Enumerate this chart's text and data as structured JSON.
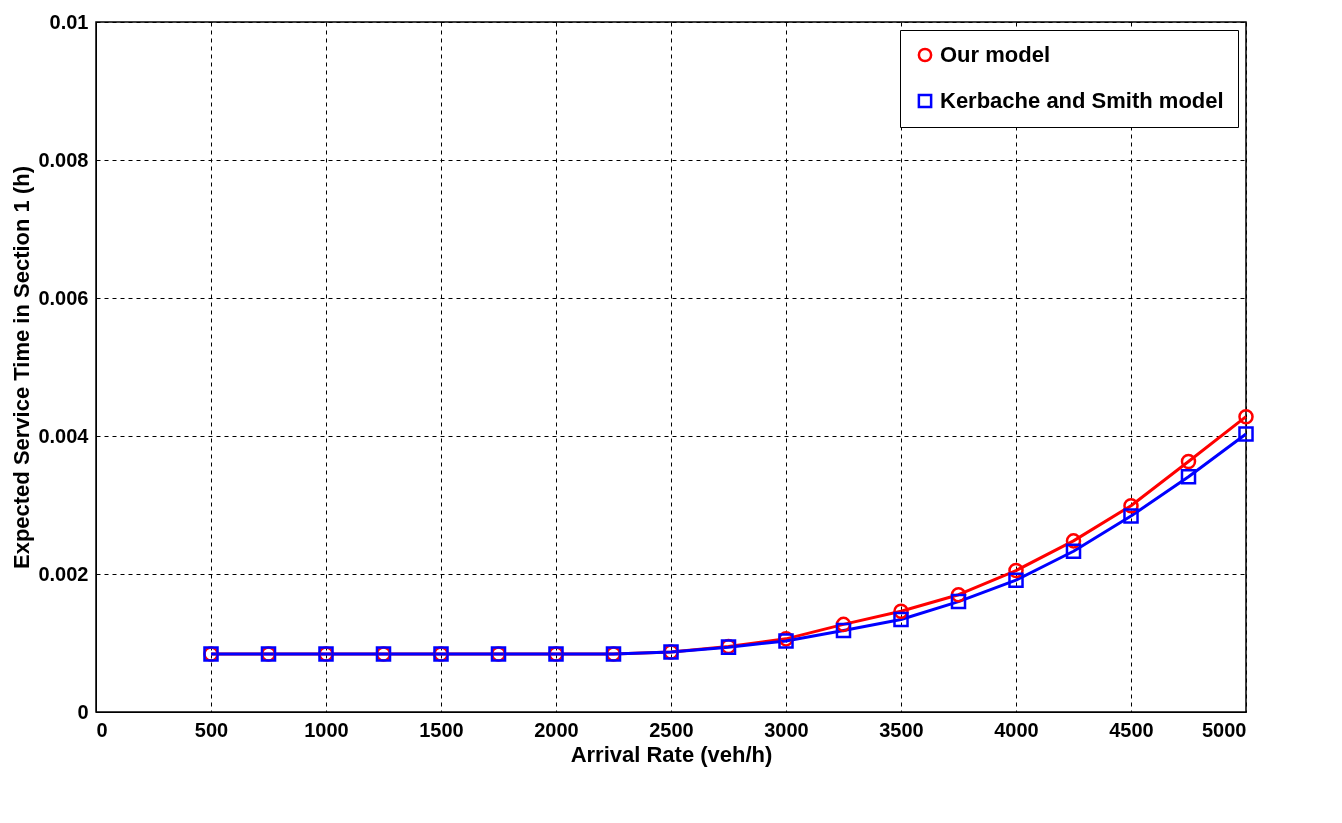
{
  "chart_data": {
    "type": "line",
    "xlabel": "Arrival Rate (veh/h)",
    "ylabel": "Expected Service Time in Section 1 (h)",
    "x": [
      500,
      750,
      1000,
      1250,
      1500,
      1750,
      2000,
      2250,
      2500,
      2750,
      3000,
      3250,
      3500,
      3750,
      4000,
      4250,
      4500,
      4750,
      5000
    ],
    "series": [
      {
        "name": "Our model",
        "color": "#ff0000",
        "marker": "circle",
        "values": [
          0.00084,
          0.00084,
          0.00084,
          0.00084,
          0.00084,
          0.00084,
          0.00084,
          0.00084,
          0.00087,
          0.00095,
          0.00106,
          0.00127,
          0.00146,
          0.0017,
          0.00205,
          0.00248,
          0.00299,
          0.00363,
          0.00428
        ]
      },
      {
        "name": "Kerbache and Smith model",
        "color": "#0000ff",
        "marker": "square",
        "values": [
          0.00084,
          0.00084,
          0.00084,
          0.00084,
          0.00084,
          0.00084,
          0.00084,
          0.00084,
          0.00087,
          0.00094,
          0.00103,
          0.00118,
          0.00134,
          0.0016,
          0.00191,
          0.00233,
          0.00284,
          0.00341,
          0.00403
        ]
      }
    ],
    "xlim": [
      0,
      5000
    ],
    "xticks": [
      0,
      500,
      1000,
      1500,
      2000,
      2500,
      3000,
      3500,
      4000,
      4500,
      5000
    ],
    "ylim": [
      0,
      0.01
    ],
    "yticks": [
      0,
      0.002,
      0.004,
      0.006,
      0.008,
      0.01
    ],
    "grid": true,
    "legend": "top right",
    "line_style": "solid"
  }
}
